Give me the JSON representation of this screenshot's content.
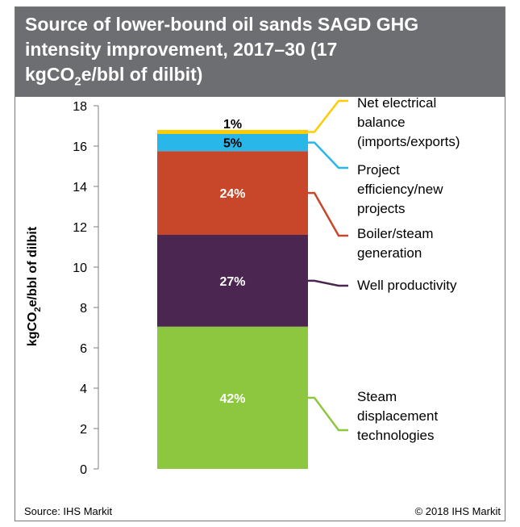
{
  "title": {
    "line1": "Source of lower-bound oil sands SAGD GHG",
    "line2": "intensity improvement, 2017–30 (17",
    "line3_pre": "kgCO",
    "line3_sub": "2",
    "line3_post": "e/bbl of dilbit)"
  },
  "footer": {
    "source": "Source: IHS Markit",
    "copyright": "© 2018 IHS Markit"
  },
  "chart_data": {
    "type": "bar",
    "stacked": true,
    "ylabel": {
      "pre": "kgCO",
      "sub": "2",
      "post": "e/bbl of dilbit"
    },
    "ylim": [
      0,
      18
    ],
    "yticks": [
      "0",
      "2",
      "4",
      "6",
      "8",
      "10",
      "12",
      "14",
      "16",
      "18"
    ],
    "grid": false,
    "legend_position": "right",
    "series": [
      {
        "name": "Steam displacement technologies",
        "legend_lines": [
          "Steam",
          "displacement",
          "technologies"
        ],
        "value": 7.05,
        "label": "42%",
        "color": "#8dc63f",
        "label_color": "#ffffff"
      },
      {
        "name": "Well productivity",
        "legend_lines": [
          "Well productivity"
        ],
        "value": 4.55,
        "label": "27%",
        "color": "#4b2650",
        "label_color": "#ffffff"
      },
      {
        "name": "Boiler/steam generation",
        "legend_lines": [
          "Boiler/steam",
          "generation"
        ],
        "value": 4.15,
        "label": "24%",
        "color": "#c8472a",
        "label_color": "#ffffff"
      },
      {
        "name": "Project efficiency/new projects",
        "legend_lines": [
          "Project",
          "efficiency/new",
          "projects"
        ],
        "value": 0.85,
        "label": "5%",
        "color": "#29b6e8",
        "label_color": "#000000"
      },
      {
        "name": "Net electrical balance (imports/exports)",
        "legend_lines": [
          "Net electrical",
          "balance",
          "(imports/exports)"
        ],
        "value": 0.2,
        "label": "1%",
        "color": "#ffcc00",
        "label_color": "#000000"
      }
    ]
  }
}
